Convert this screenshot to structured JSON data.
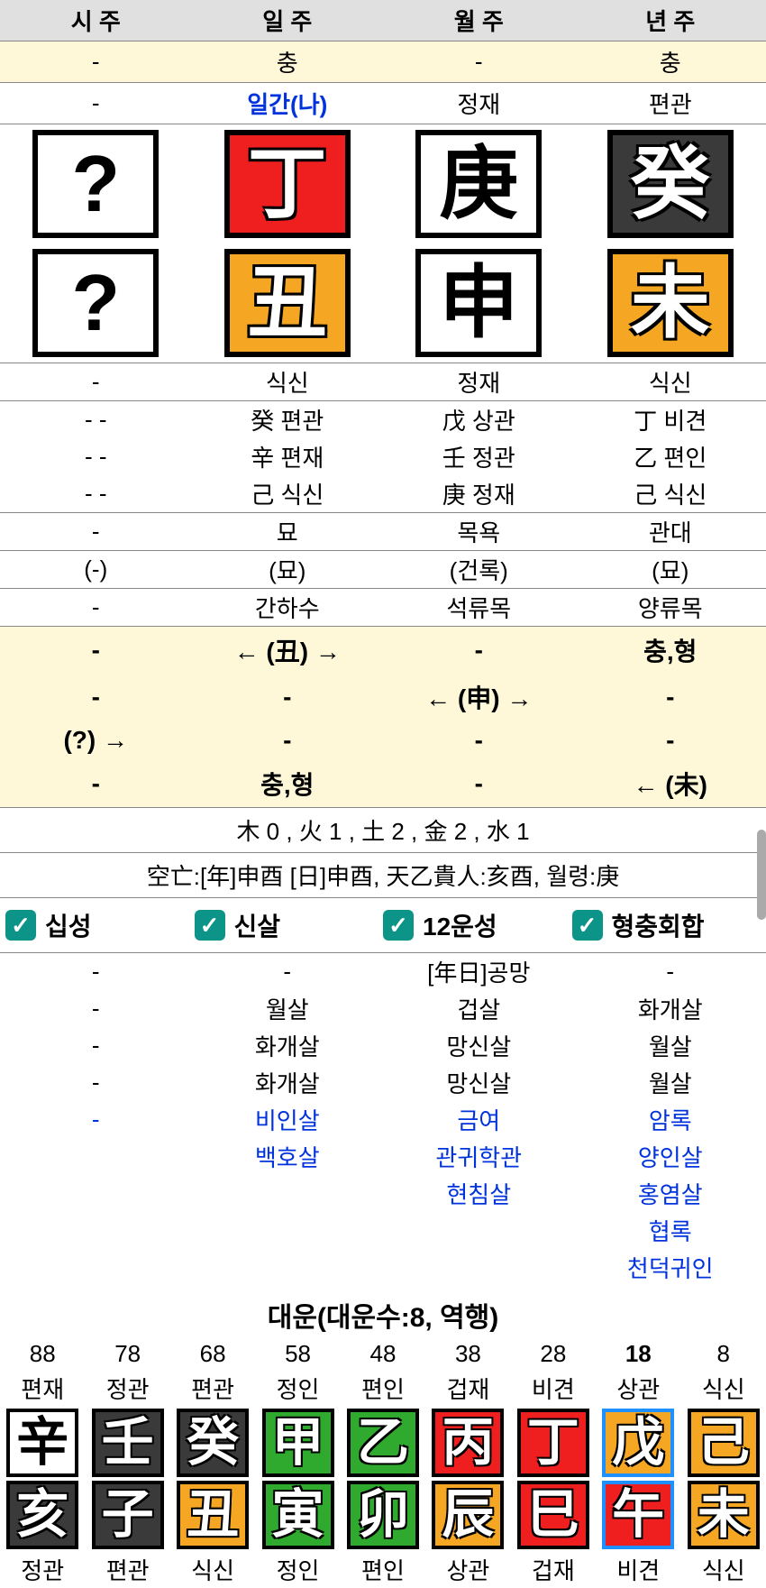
{
  "headers": {
    "c1": "시 주",
    "c2": "일 주",
    "c3": "월 주",
    "c4": "년 주"
  },
  "row_chung": {
    "c1": "-",
    "c2": "충",
    "c3": "-",
    "c4": "충"
  },
  "row_ilgan": {
    "c1": "-",
    "c2": "일간(나)",
    "c3": "정재",
    "c4": "편관"
  },
  "pillars_top": {
    "c1": {
      "char": "?",
      "bg": "pb-white"
    },
    "c2": {
      "char": "丁",
      "bg": "pb-red"
    },
    "c3": {
      "char": "庚",
      "bg": "pb-white"
    },
    "c4": {
      "char": "癸",
      "bg": "pb-dark"
    }
  },
  "pillars_bot": {
    "c1": {
      "char": "?",
      "bg": "pb-white"
    },
    "c2": {
      "char": "丑",
      "bg": "pb-orange"
    },
    "c3": {
      "char": "申",
      "bg": "pb-white"
    },
    "c4": {
      "char": "未",
      "bg": "pb-orange"
    }
  },
  "row_siksin": {
    "c1": "-",
    "c2": "식신",
    "c3": "정재",
    "c4": "식신"
  },
  "hidden": [
    {
      "c1": "- -",
      "c2": "癸 편관",
      "c3": "戊 상관",
      "c4": "丁 비견"
    },
    {
      "c1": "- -",
      "c2": "辛 편재",
      "c3": "壬 정관",
      "c4": "乙 편인"
    },
    {
      "c1": "- -",
      "c2": "己 식신",
      "c3": "庚 정재",
      "c4": "己 식신"
    }
  ],
  "row_myo": {
    "c1": "-",
    "c2": "묘",
    "c3": "목욕",
    "c4": "관대"
  },
  "row_paren": {
    "c1": "(-)",
    "c2": "(묘)",
    "c3": "(건록)",
    "c4": "(묘)"
  },
  "row_nayin": {
    "c1": "-",
    "c2": "간하수",
    "c3": "석류목",
    "c4": "양류목"
  },
  "cream_rows": [
    {
      "c1": "-",
      "c2": "← (丑) →",
      "c3": "-",
      "c4": "충,형"
    },
    {
      "c1": "-",
      "c2": "-",
      "c3": "← (申) →",
      "c4": "-"
    },
    {
      "c1": "(?) →",
      "c2": "-",
      "c3": "-",
      "c4": "-"
    },
    {
      "c1": "-",
      "c2": "충,형",
      "c3": "-",
      "c4": "← (未)"
    }
  ],
  "elements_line": "木 0 , 火 1 , 土 2 , 金 2 , 水 1",
  "gongmang_line": "空亡:[年]申酉 [日]申酉, 天乙貴人:亥酉, 월령:庚",
  "checkboxes": {
    "a": "십성",
    "b": "신살",
    "c": "12운성",
    "d": "형충회합"
  },
  "sal_black": [
    {
      "c1": "-",
      "c2": "-",
      "c3": "[年日]공망",
      "c4": "-"
    },
    {
      "c1": "-",
      "c2": "월살",
      "c3": "겁살",
      "c4": "화개살"
    },
    {
      "c1": "-",
      "c2": "화개살",
      "c3": "망신살",
      "c4": "월살"
    },
    {
      "c1": "-",
      "c2": "화개살",
      "c3": "망신살",
      "c4": "월살"
    }
  ],
  "sal_blue": [
    {
      "c1": "-",
      "c2": "비인살",
      "c3": "금여",
      "c4": "암록"
    },
    {
      "c1": "",
      "c2": "백호살",
      "c3": "관귀학관",
      "c4": "양인살"
    },
    {
      "c1": "",
      "c2": "",
      "c3": "현침살",
      "c4": "홍염살"
    },
    {
      "c1": "",
      "c2": "",
      "c3": "",
      "c4": "협록"
    },
    {
      "c1": "",
      "c2": "",
      "c3": "",
      "c4": "천덕귀인"
    }
  ],
  "daeun_title": "대운(대운수:8, 역행)",
  "daeun": {
    "ages": [
      "88",
      "78",
      "68",
      "58",
      "48",
      "38",
      "28",
      "18",
      "8"
    ],
    "top_lbl": [
      "편재",
      "정관",
      "편관",
      "정인",
      "편인",
      "겁재",
      "비견",
      "상관",
      "식신"
    ],
    "top_box": [
      {
        "ch": "辛",
        "c": "db-white"
      },
      {
        "ch": "壬",
        "c": "db-dark"
      },
      {
        "ch": "癸",
        "c": "db-dark"
      },
      {
        "ch": "甲",
        "c": "db-green"
      },
      {
        "ch": "乙",
        "c": "db-green"
      },
      {
        "ch": "丙",
        "c": "db-red"
      },
      {
        "ch": "丁",
        "c": "db-red"
      },
      {
        "ch": "戊",
        "c": "db-orange"
      },
      {
        "ch": "己",
        "c": "db-orange"
      }
    ],
    "bot_box": [
      {
        "ch": "亥",
        "c": "db-dark"
      },
      {
        "ch": "子",
        "c": "db-dark"
      },
      {
        "ch": "丑",
        "c": "db-orange"
      },
      {
        "ch": "寅",
        "c": "db-green"
      },
      {
        "ch": "卯",
        "c": "db-green"
      },
      {
        "ch": "辰",
        "c": "db-orange"
      },
      {
        "ch": "巳",
        "c": "db-red"
      },
      {
        "ch": "午",
        "c": "db-red"
      },
      {
        "ch": "未",
        "c": "db-orange"
      }
    ],
    "bot_lbl": [
      "정관",
      "편관",
      "식신",
      "정인",
      "편인",
      "상관",
      "겁재",
      "비견",
      "식신"
    ],
    "highlight_index": 7
  },
  "colors": {
    "header_bg": "#e0e0e0",
    "cream": "#fef8d8",
    "red": "#ef1f1f",
    "orange": "#f5a623",
    "dark": "#3a3a3a",
    "green": "#2faa2f",
    "blue_text": "#0033dd",
    "check": "#0d9488",
    "hl": "#1e90ff"
  }
}
